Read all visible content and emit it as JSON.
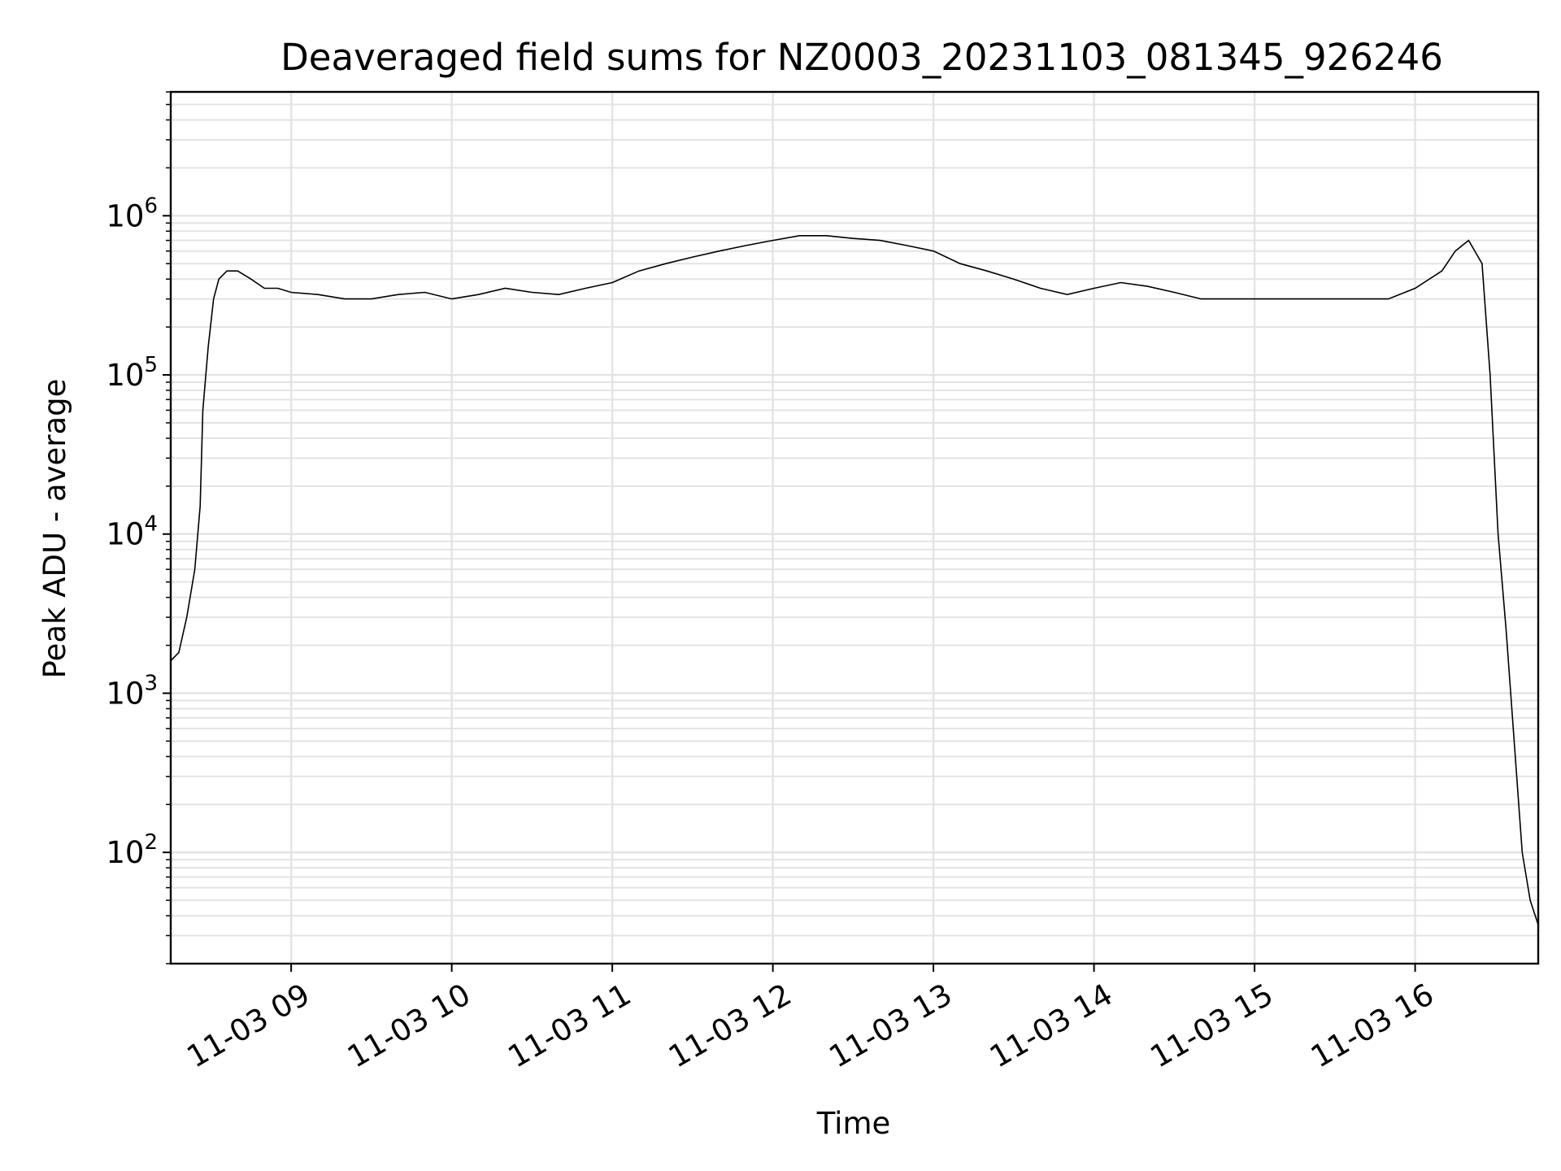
{
  "chart_data": {
    "type": "line",
    "title": "Deaveraged field sums for NZ0003_20231103_081345_926246",
    "xlabel": "Time",
    "ylabel": "Peak ADU - average",
    "y_scale": "log",
    "ylim": [
      20,
      6000000
    ],
    "xlim": [
      "11-03 08:15",
      "11-03 16:46"
    ],
    "grid": true,
    "line_color": "#000000",
    "x_ticks": [
      "11-03 09",
      "11-03 10",
      "11-03 11",
      "11-03 12",
      "11-03 13",
      "11-03 14",
      "11-03 15",
      "11-03 16"
    ],
    "x_tick_values": [
      "11-03 09:00",
      "11-03 10:00",
      "11-03 11:00",
      "11-03 12:00",
      "11-03 13:00",
      "11-03 14:00",
      "11-03 15:00",
      "11-03 16:00"
    ],
    "y_ticks": [
      {
        "value": 100,
        "base": "10",
        "exp": "2"
      },
      {
        "value": 1000,
        "base": "10",
        "exp": "3"
      },
      {
        "value": 10000,
        "base": "10",
        "exp": "4"
      },
      {
        "value": 100000,
        "base": "10",
        "exp": "5"
      },
      {
        "value": 1000000,
        "base": "10",
        "exp": "6"
      }
    ],
    "series": [
      {
        "x": [
          "11-03 08:15",
          "11-03 08:18",
          "11-03 08:21",
          "11-03 08:24",
          "11-03 08:26",
          "11-03 08:27",
          "11-03 08:29",
          "11-03 08:31",
          "11-03 08:33",
          "11-03 08:36",
          "11-03 08:40",
          "11-03 08:45",
          "11-03 08:50",
          "11-03 08:55",
          "11-03 09:00",
          "11-03 09:10",
          "11-03 09:20",
          "11-03 09:30",
          "11-03 09:40",
          "11-03 09:50",
          "11-03 10:00",
          "11-03 10:10",
          "11-03 10:20",
          "11-03 10:30",
          "11-03 10:40",
          "11-03 10:50",
          "11-03 11:00",
          "11-03 11:10",
          "11-03 11:20",
          "11-03 11:30",
          "11-03 11:40",
          "11-03 11:50",
          "11-03 12:00",
          "11-03 12:10",
          "11-03 12:20",
          "11-03 12:30",
          "11-03 12:40",
          "11-03 12:50",
          "11-03 13:00",
          "11-03 13:10",
          "11-03 13:20",
          "11-03 13:30",
          "11-03 13:40",
          "11-03 13:50",
          "11-03 14:00",
          "11-03 14:10",
          "11-03 14:20",
          "11-03 14:30",
          "11-03 14:40",
          "11-03 14:50",
          "11-03 15:00",
          "11-03 15:10",
          "11-03 15:20",
          "11-03 15:30",
          "11-03 15:40",
          "11-03 15:50",
          "11-03 16:00",
          "11-03 16:10",
          "11-03 16:15",
          "11-03 16:20",
          "11-03 16:25",
          "11-03 16:28",
          "11-03 16:31",
          "11-03 16:34",
          "11-03 16:37",
          "11-03 16:40",
          "11-03 16:43",
          "11-03 16:46"
        ],
        "y": [
          1600,
          1800,
          3000,
          6000,
          15000,
          60000,
          150000,
          300000,
          400000,
          450000,
          450000,
          400000,
          350000,
          350000,
          330000,
          320000,
          300000,
          300000,
          320000,
          330000,
          300000,
          320000,
          350000,
          330000,
          320000,
          350000,
          380000,
          450000,
          500000,
          550000,
          600000,
          650000,
          700000,
          750000,
          750000,
          720000,
          700000,
          650000,
          600000,
          500000,
          450000,
          400000,
          350000,
          320000,
          350000,
          380000,
          360000,
          330000,
          300000,
          300000,
          300000,
          300000,
          300000,
          300000,
          300000,
          300000,
          350000,
          450000,
          600000,
          700000,
          500000,
          100000,
          10000,
          2500,
          500,
          100,
          50,
          35
        ]
      }
    ]
  }
}
